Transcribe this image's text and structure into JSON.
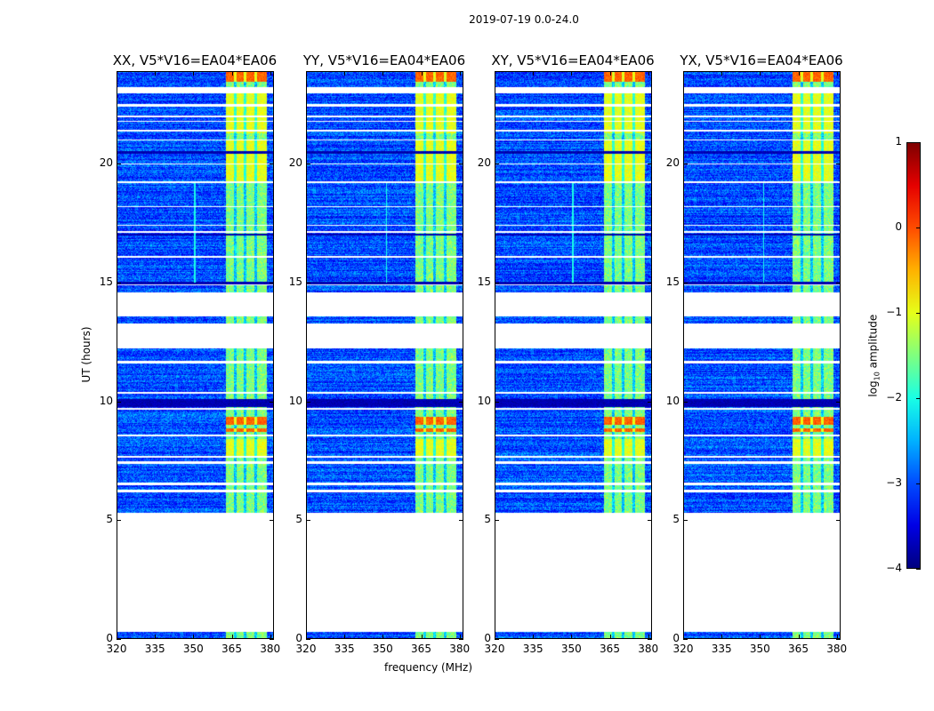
{
  "chart_data": {
    "type": "heatmap",
    "title": "2019-07-19 0.0-24.0",
    "xlabel": "frequency (MHz)",
    "ylabel": "UT (hours)",
    "xlim": [
      320,
      381.5
    ],
    "ylim": [
      0,
      23.9
    ],
    "xticks": [
      320,
      335,
      350,
      365,
      380
    ],
    "yticks": [
      0,
      5,
      10,
      15,
      20
    ],
    "panels": [
      {
        "title": "XX, V5*V16=EA04*EA06"
      },
      {
        "title": "YY, V5*V16=EA04*EA06"
      },
      {
        "title": "XY, V5*V16=EA04*EA06"
      },
      {
        "title": "YX, V5*V16=EA04*EA06"
      }
    ],
    "colorbar": {
      "label_prefix": "log",
      "label_sub": "10",
      "label_suffix": " amplitude",
      "range": [
        -4,
        1
      ],
      "ticks": [
        1,
        0,
        -1,
        -2,
        -3,
        -4
      ],
      "tick_labels": [
        "1",
        "0",
        "−1",
        "−2",
        "−3",
        "−4"
      ],
      "colormap": "jet"
    },
    "background_log_amplitude": -3,
    "rfi_band_mhz": [
      363,
      379
    ],
    "rfi_band_log_amplitude": -1.5,
    "rfi_subband_edges_mhz": [
      366.5,
      370.5,
      374.5
    ],
    "no_data_intervals_ut": [
      [
        0.25,
        5.3
      ],
      [
        12.25,
        13.3
      ],
      [
        13.6,
        14.6
      ],
      [
        23.0,
        23.25
      ],
      [
        22.45,
        22.55
      ],
      [
        6.15,
        6.25
      ],
      [
        6.45,
        6.55
      ],
      [
        7.35,
        7.45
      ],
      [
        7.6,
        7.7
      ],
      [
        8.5,
        8.6
      ],
      [
        9.65,
        9.72
      ],
      [
        10.3,
        10.4
      ],
      [
        11.6,
        11.7
      ],
      [
        14.9,
        14.95
      ],
      [
        16.05,
        16.12
      ],
      [
        17.1,
        17.2
      ],
      [
        17.4,
        17.45
      ],
      [
        18.2,
        18.25
      ],
      [
        19.2,
        19.28
      ],
      [
        20.0,
        20.05
      ],
      [
        21.0,
        21.05
      ],
      [
        21.4,
        21.45
      ],
      [
        21.8,
        21.85
      ],
      [
        22.0,
        22.05
      ]
    ],
    "dark_intervals_ut": [
      [
        9.75,
        10.1
      ],
      [
        14.95,
        15.05
      ],
      [
        20.45,
        20.55
      ],
      [
        17.0,
        17.08
      ]
    ],
    "bright_intervals_ut": [
      [
        23.5,
        23.9
      ],
      [
        9.0,
        9.35
      ],
      [
        8.7,
        8.85
      ]
    ],
    "yellow_intervals_ut": [
      [
        19.3,
        21.0
      ],
      [
        7.7,
        8.4
      ],
      [
        21.3,
        23.0
      ]
    ]
  }
}
